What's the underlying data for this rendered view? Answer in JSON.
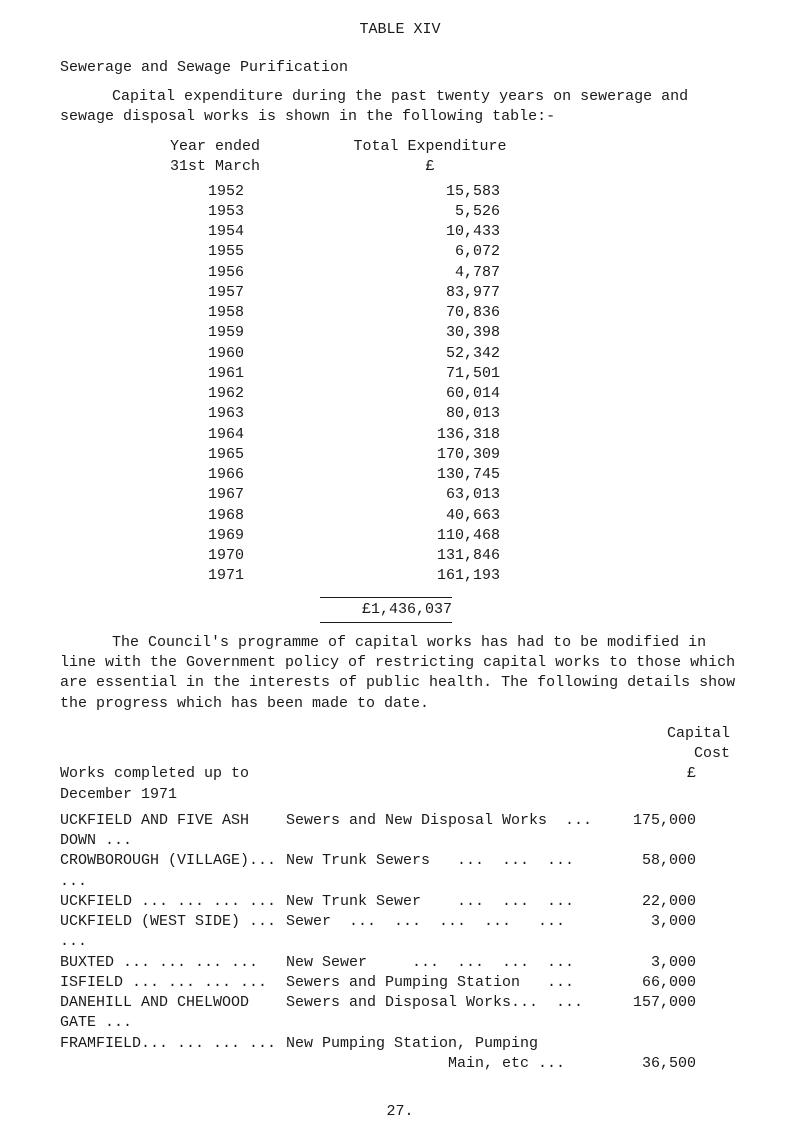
{
  "title": "TABLE  XIV",
  "heading": "Sewerage and Sewage Purification",
  "para1": "Capital expenditure during the past twenty years on sewerage and sewage disposal works is shown in the following table:-",
  "yearHeader": "Year ended",
  "dateHeader": "31st March",
  "expHeader": "Total Expenditure",
  "currency": "£",
  "years": [
    {
      "y": "1952",
      "v": "15,583"
    },
    {
      "y": "1953",
      "v": "5,526"
    },
    {
      "y": "1954",
      "v": "10,433"
    },
    {
      "y": "1955",
      "v": "6,072"
    },
    {
      "y": "1956",
      "v": "4,787"
    },
    {
      "y": "1957",
      "v": "83,977"
    },
    {
      "y": "1958",
      "v": "70,836"
    },
    {
      "y": "1959",
      "v": "30,398"
    },
    {
      "y": "1960",
      "v": "52,342"
    },
    {
      "y": "1961",
      "v": "71,501"
    },
    {
      "y": "1962",
      "v": "60,014"
    },
    {
      "y": "1963",
      "v": "80,013"
    },
    {
      "y": "1964",
      "v": "136,318"
    },
    {
      "y": "1965",
      "v": "170,309"
    },
    {
      "y": "1966",
      "v": "130,745"
    },
    {
      "y": "1967",
      "v": "63,013"
    },
    {
      "y": "1968",
      "v": "40,663"
    },
    {
      "y": "1969",
      "v": "110,468"
    },
    {
      "y": "1970",
      "v": "131,846"
    },
    {
      "y": "1971",
      "v": "161,193"
    }
  ],
  "total": "£1,436,037",
  "para2": "The Council's programme of capital works has had to be modified in line with the Government policy of restricting capital works to those which are essential in the interests of public health.  The following details show the progress which has been made to date.",
  "capitalLabel": "Capital",
  "costLabel": "Cost",
  "poundLabel": "£",
  "worksHeader": "Works completed up to December 1971",
  "works": [
    {
      "name": "UCKFIELD AND FIVE ASH DOWN ...",
      "desc": "Sewers and New Disposal Works  ...",
      "cost": "175,000"
    },
    {
      "name": "CROWBOROUGH (VILLAGE)...   ...",
      "desc": "New Trunk Sewers   ...  ...  ...",
      "cost": "58,000"
    },
    {
      "name": "UCKFIELD ...  ...   ...  ...",
      "desc": "New Trunk Sewer    ...  ...  ...",
      "cost": "22,000"
    },
    {
      "name": "UCKFIELD (WEST SIDE) ...  ...",
      "desc": "Sewer  ...  ...  ...  ...   ...",
      "cost": "3,000"
    },
    {
      "name": "BUXTED   ...  ...   ...  ...",
      "desc": "New Sewer     ...  ...  ...  ...",
      "cost": "3,000"
    },
    {
      "name": "ISFIELD  ...  ...   ...   ...",
      "desc": "Sewers and Pumping Station   ...",
      "cost": "66,000"
    },
    {
      "name": "DANEHILL AND CHELWOOD GATE ...",
      "desc": "Sewers and Disposal Works...  ...",
      "cost": "157,000"
    },
    {
      "name": "FRAMFIELD...   ...  ...  ...",
      "desc": "New Pumping Station, Pumping",
      "cost": ""
    },
    {
      "name": "",
      "desc": "                  Main, etc ...",
      "cost": "36,500"
    }
  ],
  "pageNum": "27."
}
